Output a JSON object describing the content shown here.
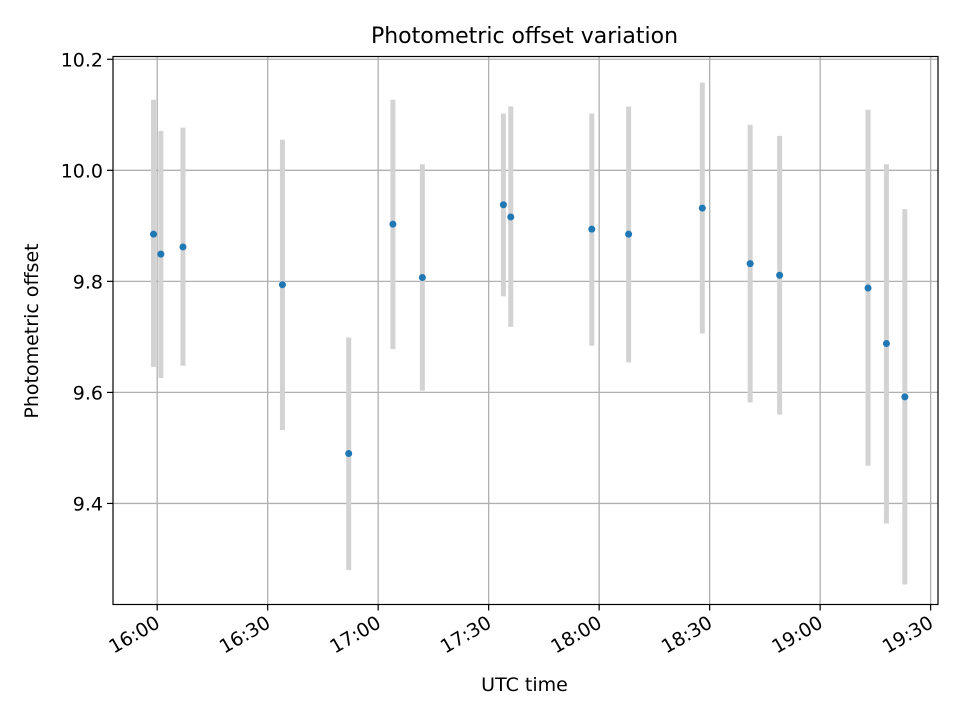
{
  "chart_data": {
    "type": "scatter",
    "title": "Photometric offset variation",
    "xlabel": "UTC time",
    "ylabel": "Photometric offset",
    "xlim": [
      "15:48",
      "19:32"
    ],
    "ylim": [
      9.218,
      10.205
    ],
    "x_ticks": [
      "16:00",
      "16:30",
      "17:00",
      "17:30",
      "18:00",
      "18:30",
      "19:00",
      "19:30"
    ],
    "y_ticks": [
      9.4,
      9.6,
      9.8,
      10.0,
      10.2
    ],
    "y_tick_labels": [
      "9.4",
      "9.6",
      "9.8",
      "10.0",
      "10.2"
    ],
    "grid": true,
    "colors": {
      "marker": "#1f77b4",
      "errorbar": "#d3d3d3",
      "grid": "#b0b0b0"
    },
    "points": [
      {
        "time": "15:59",
        "y": 9.885,
        "err_low": 9.646,
        "err_high": 10.127
      },
      {
        "time": "16:01",
        "y": 9.849,
        "err_low": 9.626,
        "err_high": 10.071
      },
      {
        "time": "16:07",
        "y": 9.862,
        "err_low": 9.648,
        "err_high": 10.077
      },
      {
        "time": "16:34",
        "y": 9.794,
        "err_low": 9.532,
        "err_high": 10.055
      },
      {
        "time": "16:52",
        "y": 9.49,
        "err_low": 9.28,
        "err_high": 9.699
      },
      {
        "time": "17:04",
        "y": 9.903,
        "err_low": 9.678,
        "err_high": 10.127
      },
      {
        "time": "17:12",
        "y": 9.807,
        "err_low": 9.603,
        "err_high": 10.011
      },
      {
        "time": "17:34",
        "y": 9.938,
        "err_low": 9.773,
        "err_high": 10.102
      },
      {
        "time": "17:36",
        "y": 9.916,
        "err_low": 9.718,
        "err_high": 10.115
      },
      {
        "time": "17:58",
        "y": 9.894,
        "err_low": 9.684,
        "err_high": 10.102
      },
      {
        "time": "18:08",
        "y": 9.885,
        "err_low": 9.654,
        "err_high": 10.115
      },
      {
        "time": "18:28",
        "y": 9.932,
        "err_low": 9.706,
        "err_high": 10.158
      },
      {
        "time": "18:41",
        "y": 9.832,
        "err_low": 9.582,
        "err_high": 10.082
      },
      {
        "time": "18:49",
        "y": 9.811,
        "err_low": 9.56,
        "err_high": 10.062
      },
      {
        "time": "19:13",
        "y": 9.788,
        "err_low": 9.468,
        "err_high": 10.109
      },
      {
        "time": "19:18",
        "y": 9.688,
        "err_low": 9.364,
        "err_high": 10.011
      },
      {
        "time": "19:23",
        "y": 9.592,
        "err_low": 9.254,
        "err_high": 9.93
      }
    ]
  }
}
